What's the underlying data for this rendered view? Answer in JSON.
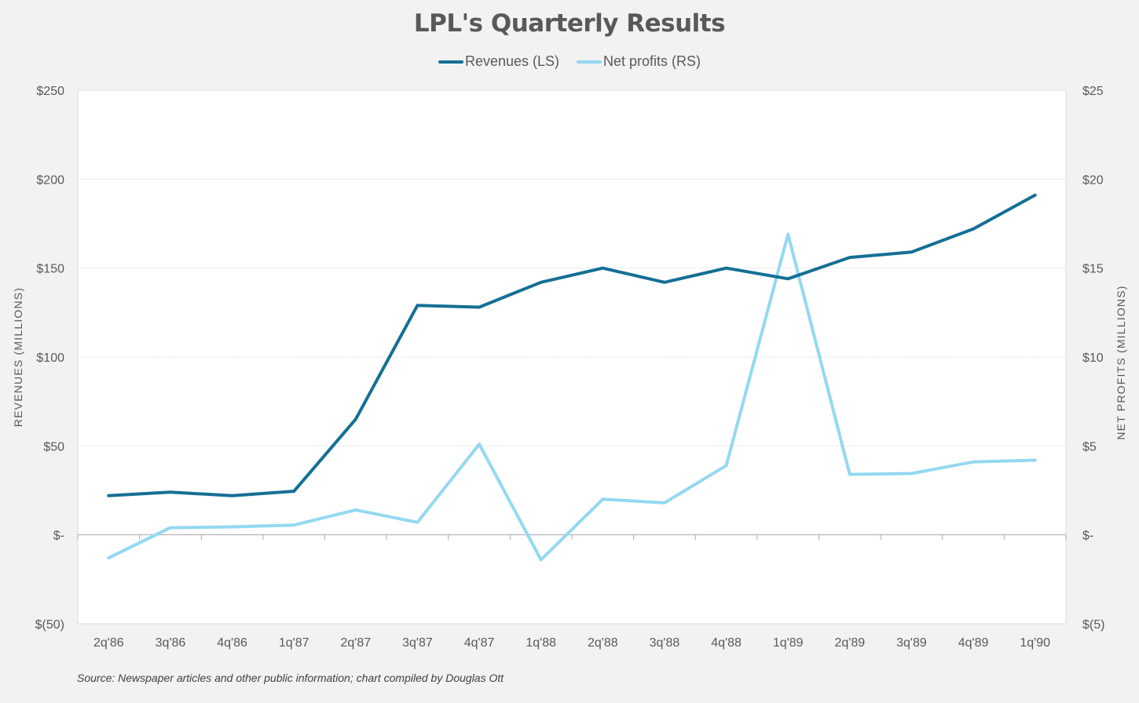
{
  "chart_data": {
    "type": "line",
    "title": "LPL's Quarterly Results",
    "categories": [
      "2q'86",
      "3q'86",
      "4q'86",
      "1q'87",
      "2q'87",
      "3q'87",
      "4q'87",
      "1q'88",
      "2q'88",
      "3q'88",
      "4q'88",
      "1q'89",
      "2q'89",
      "3q'89",
      "4q'89",
      "1q'90"
    ],
    "series": [
      {
        "name": "Revenues (LS)",
        "axis": "left",
        "color": "#156f95",
        "values": [
          22,
          24,
          22,
          24.5,
          65,
          129,
          128,
          142,
          150,
          142,
          150,
          144,
          156,
          159,
          172,
          191
        ]
      },
      {
        "name": "Net profits (RS)",
        "axis": "right",
        "color": "#94d8f2",
        "values": [
          -1.3,
          0.4,
          0.45,
          0.55,
          1.4,
          0.7,
          5.1,
          -1.4,
          2.0,
          1.8,
          3.9,
          16.9,
          3.4,
          3.45,
          4.1,
          4.2
        ]
      }
    ],
    "ylabel": "REVENUES (MILLIONS)",
    "y2label": "NET PROFITS (MILLIONS)",
    "ylim": [
      -50,
      250
    ],
    "y2lim": [
      -5,
      25
    ],
    "yticks": [
      -50,
      0,
      50,
      100,
      150,
      200,
      250
    ],
    "ytick_labels": [
      "$(50)",
      "$-",
      "$50",
      "$100",
      "$150",
      "$200",
      "$250"
    ],
    "y2ticks": [
      -5,
      0,
      5,
      10,
      15,
      20,
      25
    ],
    "y2tick_labels": [
      "$(5)",
      "$-",
      "$5",
      "$10",
      "$15",
      "$20",
      "$25"
    ],
    "grid": true,
    "legend": "top-center",
    "source": "Source: Newspaper articles and other public information; chart compiled by Douglas Ott"
  }
}
